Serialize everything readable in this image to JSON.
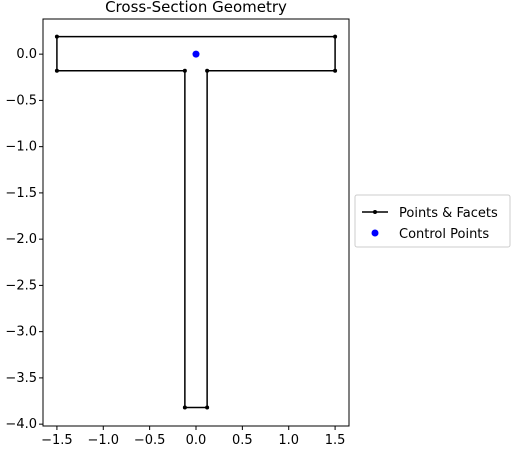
{
  "chart_data": {
    "type": "line",
    "title": "Cross-Section Geometry",
    "xlabel": "",
    "ylabel": "",
    "xlim": [
      -1.65,
      1.65
    ],
    "ylim": [
      -4.02,
      0.38
    ],
    "grid": false,
    "legend_position": "outside-right",
    "x_ticks": [
      {
        "value": -1.5,
        "label": "−1.5"
      },
      {
        "value": -1.0,
        "label": "−1.0"
      },
      {
        "value": -0.5,
        "label": "−0.5"
      },
      {
        "value": 0.0,
        "label": "0.0"
      },
      {
        "value": 0.5,
        "label": "0.5"
      },
      {
        "value": 1.0,
        "label": "1.0"
      },
      {
        "value": 1.5,
        "label": "1.5"
      }
    ],
    "y_ticks": [
      {
        "value": 0.0,
        "label": "0.0"
      },
      {
        "value": -0.5,
        "label": "−0.5"
      },
      {
        "value": -1.0,
        "label": "−1.0"
      },
      {
        "value": -1.5,
        "label": "−1.5"
      },
      {
        "value": -2.0,
        "label": "−2.0"
      },
      {
        "value": -2.5,
        "label": "−2.5"
      },
      {
        "value": -3.0,
        "label": "−3.0"
      },
      {
        "value": -3.5,
        "label": "−3.5"
      },
      {
        "value": -4.0,
        "label": "−4.0"
      }
    ],
    "series": [
      {
        "name": "Points & Facets",
        "kind": "polygon",
        "color": "#000000",
        "points": [
          [
            -1.5,
            0.19
          ],
          [
            1.5,
            0.19
          ],
          [
            1.5,
            -0.18
          ],
          [
            0.12,
            -0.18
          ],
          [
            0.12,
            -3.82
          ],
          [
            -0.12,
            -3.82
          ],
          [
            -0.12,
            -0.18
          ],
          [
            -1.5,
            -0.18
          ]
        ]
      },
      {
        "name": "Control Points",
        "kind": "scatter",
        "color": "#0000ff",
        "points": [
          [
            0.0,
            0.0
          ]
        ]
      }
    ]
  }
}
